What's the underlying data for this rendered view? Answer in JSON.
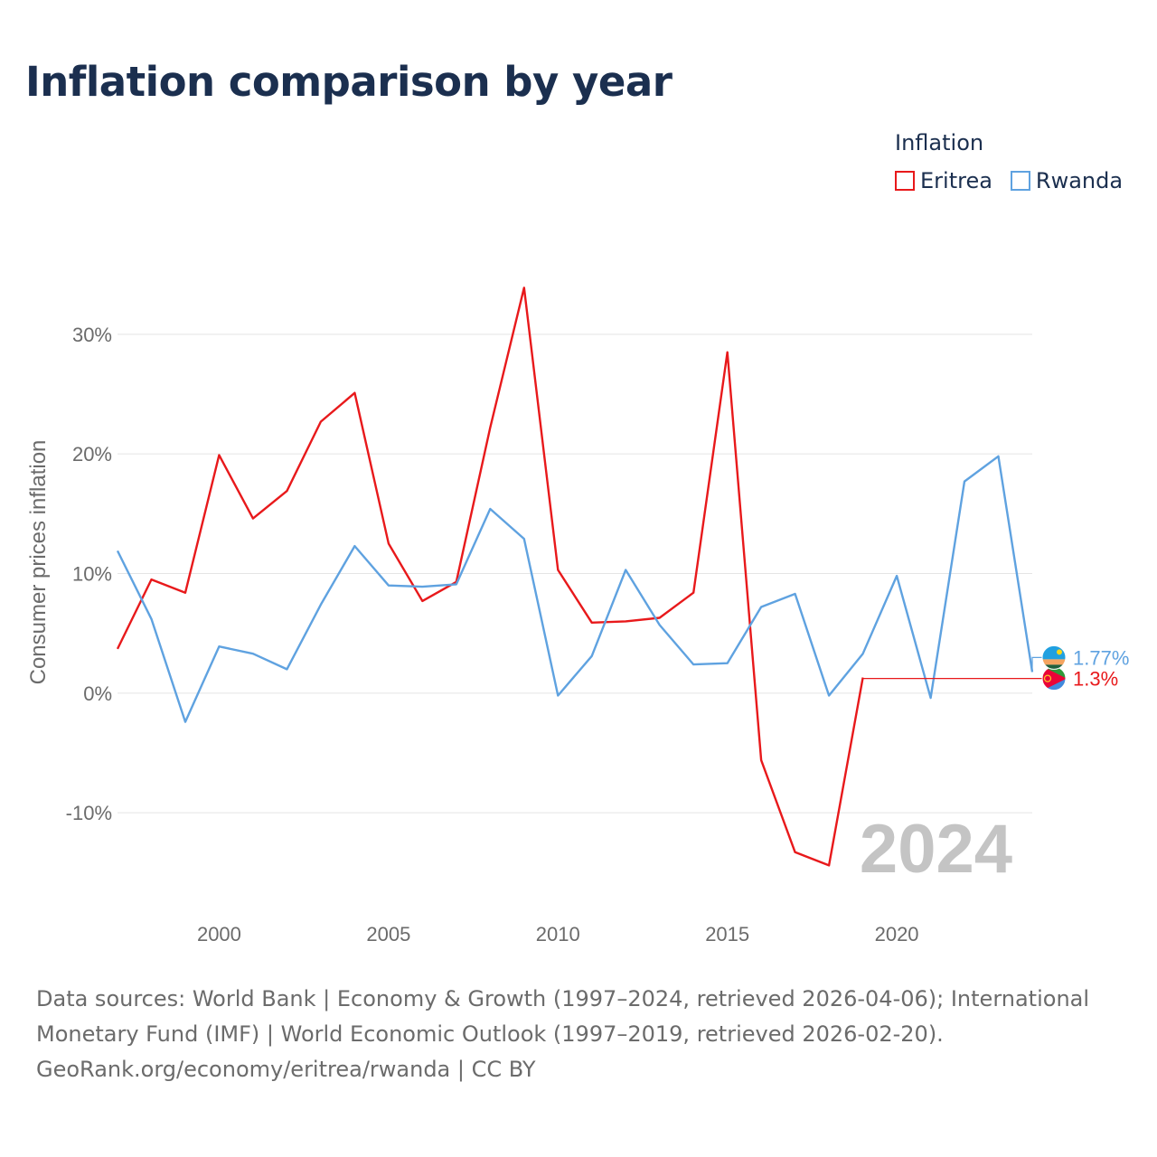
{
  "title": "Inflation comparison by year",
  "legend": {
    "title": "Inflation",
    "items": [
      {
        "label": "Eritrea",
        "color": "#e8191b"
      },
      {
        "label": "Rwanda",
        "color": "#5fa2e0"
      }
    ]
  },
  "chart_data": {
    "type": "line",
    "title": "Inflation comparison by year",
    "xlabel": "",
    "ylabel": "Consumer prices inflation",
    "xlim": [
      1997,
      2024
    ],
    "ylim": [
      -18,
      38
    ],
    "xticks": [
      2000,
      2005,
      2010,
      2015,
      2020
    ],
    "xtick_labels": [
      "2000",
      "2005",
      "2010",
      "2015",
      "2020"
    ],
    "yticks": [
      -10,
      0,
      10,
      20,
      30
    ],
    "ytick_labels": [
      "-10%",
      "0%",
      "10%",
      "20%",
      "30%"
    ],
    "grid": true,
    "year_watermark": "2024",
    "series": [
      {
        "name": "Eritrea",
        "color": "#e8191b",
        "x": [
          1997,
          1998,
          1999,
          2000,
          2001,
          2002,
          2003,
          2004,
          2005,
          2006,
          2007,
          2008,
          2009,
          2010,
          2011,
          2012,
          2013,
          2014,
          2015,
          2016,
          2017,
          2018,
          2019
        ],
        "values": [
          3.7,
          9.5,
          8.4,
          19.9,
          14.6,
          16.9,
          22.7,
          25.1,
          12.5,
          7.7,
          9.3,
          22.2,
          33.9,
          10.3,
          5.9,
          6.0,
          6.3,
          8.4,
          28.5,
          -5.6,
          -13.3,
          -14.4,
          1.3
        ],
        "end_label": "1.3%",
        "end_flag": "eritrea-flag-icon"
      },
      {
        "name": "Rwanda",
        "color": "#5fa2e0",
        "x": [
          1997,
          1998,
          1999,
          2000,
          2001,
          2002,
          2003,
          2004,
          2005,
          2006,
          2007,
          2008,
          2009,
          2010,
          2011,
          2012,
          2013,
          2014,
          2015,
          2016,
          2017,
          2018,
          2019,
          2020,
          2021,
          2022,
          2023,
          2024
        ],
        "values": [
          11.9,
          6.2,
          -2.4,
          3.9,
          3.3,
          2.0,
          7.4,
          12.3,
          9.0,
          8.9,
          9.1,
          15.4,
          12.9,
          -0.2,
          3.1,
          10.3,
          5.7,
          2.4,
          2.5,
          7.2,
          8.3,
          -0.2,
          3.3,
          9.8,
          -0.4,
          17.7,
          19.8,
          1.77
        ],
        "end_label": "1.77%",
        "end_flag": "rwanda-flag-icon"
      }
    ]
  },
  "footer": {
    "line1": "Data sources: World Bank | Economy & Growth (1997–2024, retrieved 2026-04-06); International",
    "line2": "Monetary Fund (IMF) | World Economic Outlook (1997–2019, retrieved 2026-02-20).",
    "line3": "GeoRank.org/economy/eritrea/rwanda | CC BY"
  }
}
